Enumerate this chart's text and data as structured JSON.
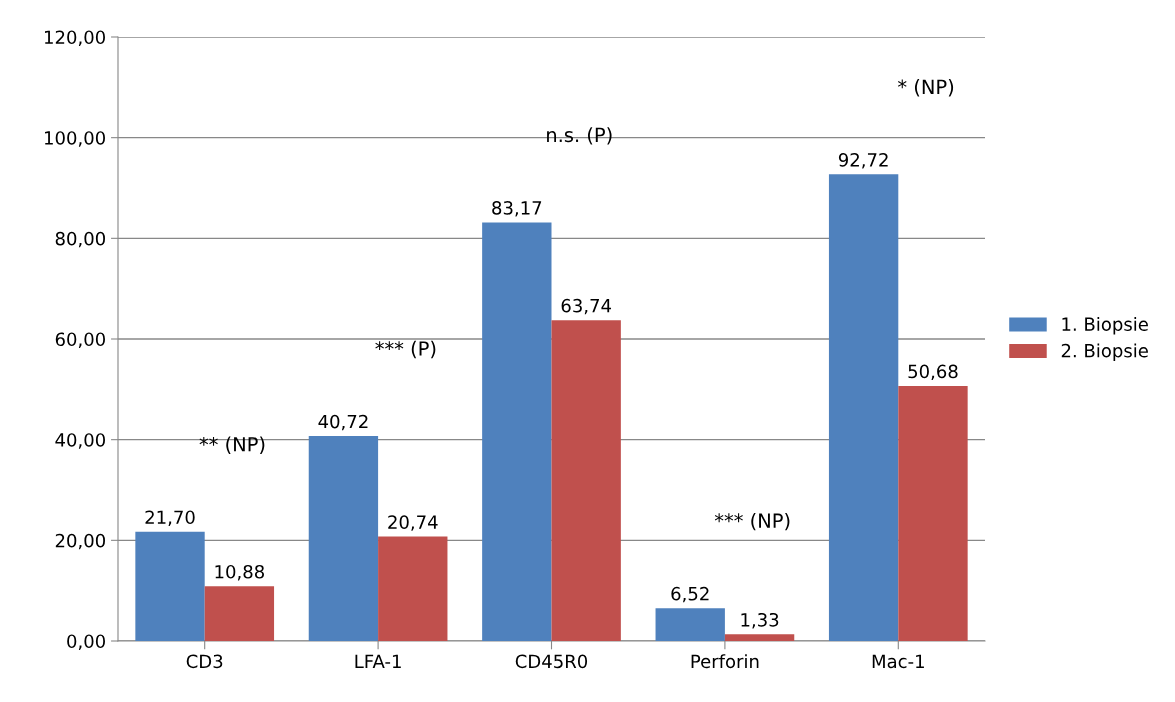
{
  "chart_data": {
    "type": "bar",
    "categories": [
      "CD3",
      "LFA-1",
      "CD45R0",
      "Perforin",
      "Mac-1"
    ],
    "series": [
      {
        "name": "1. Biopsie",
        "color": "#4f81bd",
        "values": [
          21.7,
          40.72,
          83.17,
          6.52,
          92.72
        ],
        "value_labels": [
          "21,70",
          "40,72",
          "83,17",
          "6,52",
          "92,72"
        ]
      },
      {
        "name": "2. Biopsie",
        "color": "#c0504d",
        "values": [
          10.88,
          20.74,
          63.74,
          1.33,
          50.68
        ],
        "value_labels": [
          "10,88",
          "20,74",
          "63,74",
          "1,33",
          "50,68"
        ]
      }
    ],
    "ylim": [
      0,
      120
    ],
    "yticks": [
      {
        "value": 0,
        "label": "0,00"
      },
      {
        "value": 20,
        "label": "20,00"
      },
      {
        "value": 40,
        "label": "40,00"
      },
      {
        "value": 60,
        "label": "60,00"
      },
      {
        "value": 80,
        "label": "80,00"
      },
      {
        "value": 100,
        "label": "100,00"
      },
      {
        "value": 120,
        "label": "120,00"
      }
    ],
    "grid": "y",
    "legend": "right",
    "annotations": [
      "** (NP)",
      "*** (P)",
      "n.s. (P)",
      "*** (NP)",
      "* (NP)"
    ]
  }
}
